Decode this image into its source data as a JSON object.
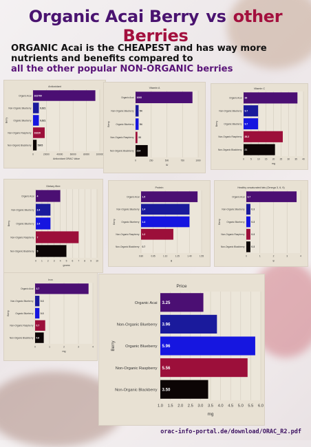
{
  "header": {
    "title_part1": "Organic Acai Berry",
    "title_vs": "vs",
    "title_part2": "other Berries",
    "subtitle_line1": "ORGANIC Acai is the CHEAPEST and has way more nutrients and benefits compared to",
    "subtitle_line2": "all the other popular NON-ORGANIC berries"
  },
  "source": "orac-info-portal.de/download/ORAC_R2.pdf",
  "colors": {
    "organic_acai": "#4b0f73",
    "non_organic_blueberry": "#1a1a9c",
    "organic_blueberry": "#1616e0",
    "non_organic_raspberry": "#9c0f3a",
    "non_organic_blackberry": "#0c0505",
    "panel_bg": "#e8e1d3"
  },
  "chart_data": [
    {
      "id": "antioxidant",
      "type": "bar",
      "orientation": "horizontal",
      "title": "Antioxidant",
      "xlabel": "Antioxidant ORAC Value",
      "ylabel": "Berry",
      "categories": [
        "Organic Acai",
        "Non-Organic Blueberry",
        "Organic Blueberry",
        "Non-Organic Raspberry",
        "Non-Organic Blackberry"
      ],
      "values": [
        102700,
        9621,
        9621,
        19220,
        5905
      ],
      "value_labels": [
        "102700",
        "9,621",
        "9,621",
        "19220",
        "5905"
      ],
      "xlim": [
        0,
        110000
      ],
      "xticks": [
        "0",
        "20000",
        "40000",
        "60000",
        "80000",
        "100000"
      ]
    },
    {
      "id": "vitamin_a",
      "type": "bar",
      "orientation": "horizontal",
      "title": "Vitamin A",
      "xlabel": "IU",
      "ylabel": "Berry",
      "categories": [
        "Organic Acai",
        "Non-Organic Blueberry",
        "Organic Blueberry",
        "Non-Organic Raspberry",
        "Non-Organic Blackberry"
      ],
      "values": [
        1000,
        54,
        54,
        33,
        214
      ],
      "value_labels": [
        "1000",
        "54",
        "54",
        "33",
        "214"
      ],
      "xlim": [
        0,
        1100
      ],
      "xticks": [
        "0",
        "250",
        "500",
        "750",
        "1000"
      ]
    },
    {
      "id": "vitamin_c",
      "type": "bar",
      "orientation": "horizontal",
      "title": "Vitamin C",
      "xlabel": "mg",
      "ylabel": "Berry",
      "categories": [
        "Organic Acai",
        "Non-Organic Blueberry",
        "Organic Blueberry",
        "Non-Organic Raspberry",
        "Non-Organic Blackberry"
      ],
      "values": [
        36,
        9.7,
        9.7,
        26.2,
        21
      ],
      "value_labels": [
        "36",
        "9.7",
        "9.7",
        "26.2",
        "21"
      ],
      "xlim": [
        0,
        40
      ],
      "xticks": [
        "0",
        "5",
        "10",
        "15",
        "20",
        "25",
        "30",
        "35",
        "40"
      ]
    },
    {
      "id": "dietary_fibre",
      "type": "bar",
      "orientation": "horizontal",
      "title": "Dietary fibre",
      "xlabel": "grams",
      "ylabel": "Berry",
      "categories": [
        "Organic Acai",
        "Non-Organic Blueberry",
        "Organic Blueberry",
        "Non-Organic Raspberry",
        "Non-Organic Blackberry"
      ],
      "values": [
        4,
        2.4,
        2.4,
        7,
        5
      ],
      "value_labels": [
        "4",
        "2.4",
        "2.4",
        "7",
        "5"
      ],
      "xlim": [
        0,
        10
      ],
      "xticks": [
        "0",
        "1",
        "2",
        "3",
        "4",
        "5",
        "6",
        "7",
        "8",
        "9",
        "10"
      ]
    },
    {
      "id": "protein",
      "type": "bar",
      "orientation": "horizontal",
      "title": "Protein",
      "xlabel": "g",
      "ylabel": "Berry",
      "categories": [
        "Organic Acai",
        "Non-Organic Blueberry",
        "Organic Blueberry",
        "Non-Organic Raspberry",
        "Non-Organic Blackberry"
      ],
      "values": [
        1.5,
        1.4,
        1.4,
        1.2,
        0.7
      ],
      "value_labels": [
        "1.5",
        "1.4",
        "1.4",
        "1.2",
        "0.7"
      ],
      "xlim": [
        0.8,
        1.55
      ],
      "xticks": [
        "0.80",
        "0.95",
        "1.10",
        "1.25",
        "1.40",
        "1.55"
      ]
    },
    {
      "id": "healthy_fats",
      "type": "bar",
      "orientation": "horizontal",
      "title": "Healthy unsaturated fats (Omega 3, 6, 9)",
      "xlabel": "g",
      "ylabel": "Berry",
      "categories": [
        "Organic Acai",
        "Non-Organic Blueberry",
        "Organic Blueberry",
        "Non-Organic Raspberry",
        "Non-Organic Blackberry"
      ],
      "values": [
        3.7,
        0.3,
        0.3,
        0.3,
        0.3
      ],
      "value_labels": [
        "3.7",
        "0.3",
        "0.3",
        "0.3",
        "0.3"
      ],
      "xlim": [
        0,
        4
      ],
      "xticks": [
        "0",
        "1",
        "2",
        "3",
        "4"
      ]
    },
    {
      "id": "iron",
      "type": "bar",
      "orientation": "horizontal",
      "title": "Iron",
      "xlabel": "mg",
      "ylabel": "Berry",
      "categories": [
        "Organic Acai",
        "Non-Organic Blueberry",
        "Organic Blueberry",
        "Non-Organic Raspberry",
        "Non-Organic Blackberry"
      ],
      "values": [
        3.7,
        0.3,
        0.3,
        0.7,
        0.6
      ],
      "value_labels": [
        "3.7",
        "0.3",
        "0.3",
        "0.7",
        "0.6"
      ],
      "xlim": [
        0,
        4
      ],
      "xticks": [
        "0",
        "1",
        "2",
        "3",
        "4"
      ]
    },
    {
      "id": "price",
      "type": "bar",
      "orientation": "horizontal",
      "title": "Price",
      "xlabel": "mg",
      "ylabel": "Berry",
      "categories": [
        "Organic Acai",
        "Non-Organic Blueberry",
        "Organic Blueberry",
        "Non-Organic Raspberry",
        "Non-Organic Blackberry"
      ],
      "values": [
        3.25,
        3.96,
        5.96,
        5.56,
        3.5
      ],
      "value_labels": [
        "3.25",
        "3.96",
        "5.96",
        "5.56",
        "3.50"
      ],
      "xlim": [
        1.0,
        6.25
      ],
      "xticks": [
        "1.0",
        "1.5",
        "2.0",
        "2.5",
        "3.0",
        "3.5",
        "4.0",
        "4.5",
        "5.0",
        "5.5",
        "6.0"
      ]
    }
  ]
}
